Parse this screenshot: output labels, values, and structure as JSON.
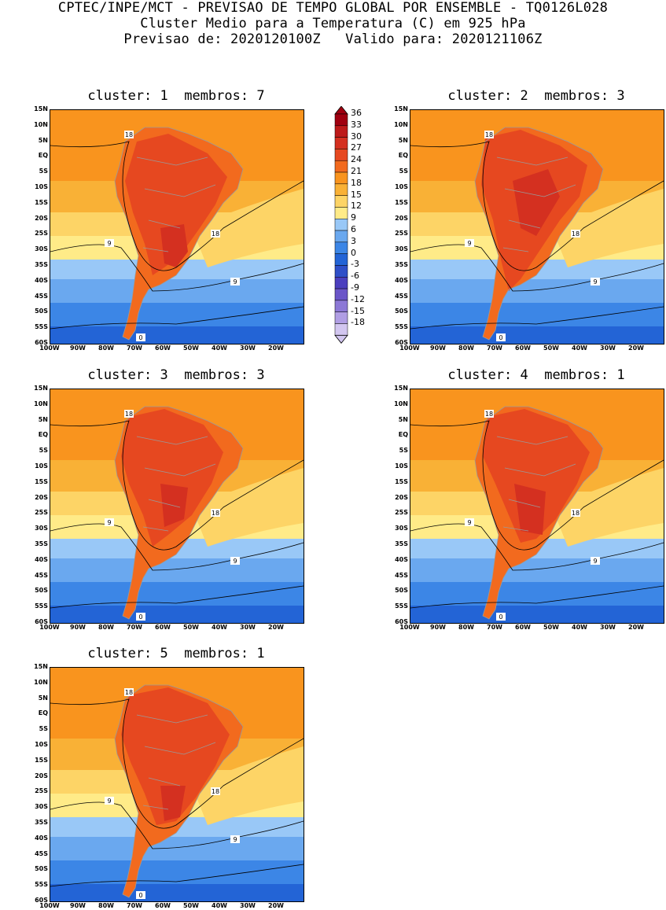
{
  "header": {
    "line1": "CPTEC/INPE/MCT - PREVISAO DE TEMPO GLOBAL POR ENSEMBLE - TQ0126L028",
    "line2": "Cluster Medio para a Temperatura (C) em 925 hPa",
    "line3": "Previsao de: 2020120100Z   Valido para: 2020121106Z"
  },
  "panels": [
    {
      "title": "cluster: 1  membros: 7"
    },
    {
      "title": "cluster: 2  membros: 3"
    },
    {
      "title": "cluster: 3  membros: 3"
    },
    {
      "title": "cluster: 4  membros: 1"
    },
    {
      "title": "cluster: 5  membros: 1"
    }
  ],
  "axes": {
    "lat_labels": [
      "15N",
      "10N",
      "5N",
      "EQ",
      "5S",
      "10S",
      "15S",
      "20S",
      "25S",
      "30S",
      "35S",
      "40S",
      "45S",
      "50S",
      "55S",
      "60S"
    ],
    "lon_labels": [
      "100W",
      "90W",
      "80W",
      "70W",
      "60W",
      "50W",
      "40W",
      "30W",
      "20W"
    ]
  },
  "contour_labels": {
    "c18": "18",
    "c9": "9",
    "c0": "0"
  },
  "colorbar": {
    "labels": [
      "36",
      "33",
      "30",
      "27",
      "24",
      "21",
      "18",
      "15",
      "12",
      "9",
      "6",
      "3",
      "0",
      "-3",
      "-6",
      "-9",
      "-12",
      "-15",
      "-18"
    ],
    "colors": [
      "#a00010",
      "#bd1a1a",
      "#d43020",
      "#e64820",
      "#f26a1e",
      "#f9941e",
      "#f9b136",
      "#fdd466",
      "#ffeb88",
      "#99c8f7",
      "#6aa8ef",
      "#3c86e6",
      "#2364d6",
      "#2f4fc8",
      "#4b3fbe",
      "#6a55c8",
      "#8c78d6",
      "#b09ee4",
      "#d2c6f0"
    ]
  }
}
